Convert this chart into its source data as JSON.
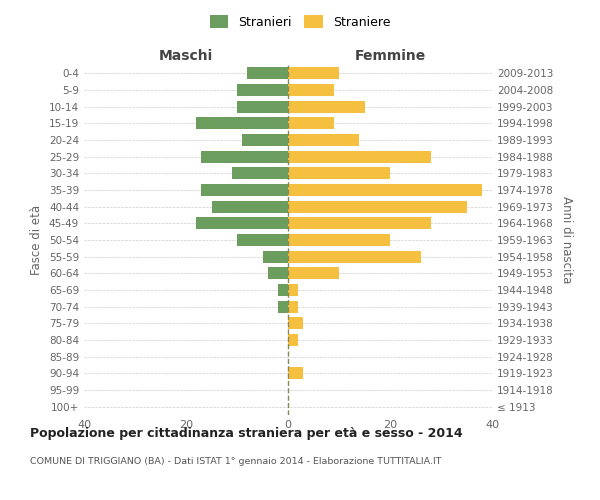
{
  "age_groups": [
    "100+",
    "95-99",
    "90-94",
    "85-89",
    "80-84",
    "75-79",
    "70-74",
    "65-69",
    "60-64",
    "55-59",
    "50-54",
    "45-49",
    "40-44",
    "35-39",
    "30-34",
    "25-29",
    "20-24",
    "15-19",
    "10-14",
    "5-9",
    "0-4"
  ],
  "birth_years": [
    "≤ 1913",
    "1914-1918",
    "1919-1923",
    "1924-1928",
    "1929-1933",
    "1934-1938",
    "1939-1943",
    "1944-1948",
    "1949-1953",
    "1954-1958",
    "1959-1963",
    "1964-1968",
    "1969-1973",
    "1974-1978",
    "1979-1983",
    "1984-1988",
    "1989-1993",
    "1994-1998",
    "1999-2003",
    "2004-2008",
    "2009-2013"
  ],
  "maschi": [
    0,
    0,
    0,
    0,
    0,
    0,
    2,
    2,
    4,
    5,
    10,
    18,
    15,
    17,
    11,
    17,
    9,
    18,
    10,
    10,
    8
  ],
  "femmine": [
    0,
    0,
    3,
    0,
    2,
    3,
    2,
    2,
    10,
    26,
    20,
    28,
    35,
    38,
    20,
    28,
    14,
    9,
    15,
    9,
    10
  ],
  "maschi_color": "#6b9e5e",
  "femmine_color": "#f5c040",
  "background_color": "#ffffff",
  "grid_color": "#cccccc",
  "center_line_color": "#888855",
  "title": "Popolazione per cittadinanza straniera per età e sesso - 2014",
  "subtitle": "COMUNE DI TRIGGIANO (BA) - Dati ISTAT 1° gennaio 2014 - Elaborazione TUTTITALIA.IT",
  "ylabel_left": "Fasce di età",
  "ylabel_right": "Anni di nascita",
  "legend_stranieri": "Stranieri",
  "legend_straniere": "Straniere",
  "header_maschi": "Maschi",
  "header_femmine": "Femmine",
  "xlim": 40
}
